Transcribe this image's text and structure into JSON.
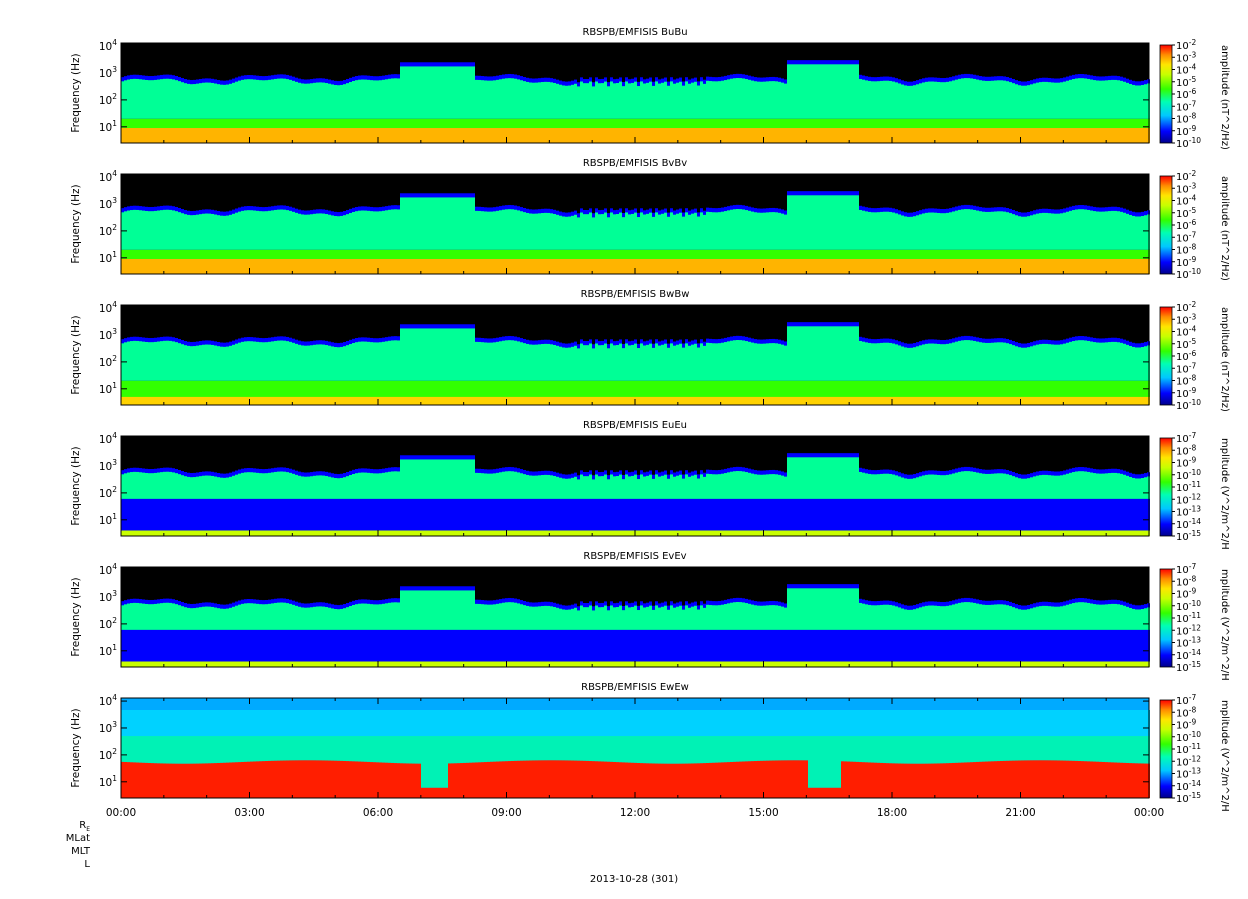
{
  "chart_data": {
    "type": "heatmap",
    "x_tick_labels": [
      "00:00",
      "03:00",
      "06:00",
      "09:00",
      "12:00",
      "15:00",
      "18:00",
      "21:00",
      "00:00"
    ],
    "x_range_hours": [
      0,
      24
    ],
    "y_tick_labels": [
      "10^1",
      "10^2",
      "10^3",
      "10^4"
    ],
    "y_range_hz": [
      2.5,
      13000
    ],
    "y_scale": "log",
    "date_label": "2013-10-28 (301)",
    "ephemeris_labels": [
      "R_E",
      "MLat",
      "MLT",
      "L"
    ],
    "panels": [
      {
        "title": "RBSPB/EMFISIS  BuBu",
        "ylabel": "Frequency (Hz)",
        "colorbar_label": "amplitude (nT^2/Hz)",
        "colorbar_exponents": [
          -2,
          -3,
          -4,
          -5,
          -6,
          -7,
          -8,
          -9,
          -10
        ],
        "kind": "B"
      },
      {
        "title": "RBSPB/EMFISIS  BvBv",
        "ylabel": "Frequency (Hz)",
        "colorbar_label": "amplitude (nT^2/Hz)",
        "colorbar_exponents": [
          -2,
          -3,
          -4,
          -5,
          -6,
          -7,
          -8,
          -9,
          -10
        ],
        "kind": "B"
      },
      {
        "title": "RBSPB/EMFISIS  BwBw",
        "ylabel": "Frequency (Hz)",
        "colorbar_label": "amplitude (nT^2/Hz)",
        "colorbar_exponents": [
          -2,
          -3,
          -4,
          -5,
          -6,
          -7,
          -8,
          -9,
          -10
        ],
        "kind": "Bw"
      },
      {
        "title": "RBSPB/EMFISIS  EuEu",
        "ylabel": "Frequency (Hz)",
        "colorbar_label": "mplitude (V^2/m^2/H",
        "colorbar_exponents": [
          -7,
          -8,
          -9,
          -10,
          -11,
          -12,
          -13,
          -14,
          -15
        ],
        "kind": "E"
      },
      {
        "title": "RBSPB/EMFISIS  EvEv",
        "ylabel": "Frequency (Hz)",
        "colorbar_label": "mplitude (V^2/m^2/H",
        "colorbar_exponents": [
          -7,
          -8,
          -9,
          -10,
          -11,
          -12,
          -13,
          -14,
          -15
        ],
        "kind": "E"
      },
      {
        "title": "RBSPB/EMFISIS  EwEw",
        "ylabel": "Frequency (Hz)",
        "colorbar_label": "mplitude (V^2/m^2/H",
        "colorbar_exponents": [
          -7,
          -8,
          -9,
          -10,
          -11,
          -12,
          -13,
          -14,
          -15
        ],
        "kind": "Ew"
      }
    ]
  }
}
